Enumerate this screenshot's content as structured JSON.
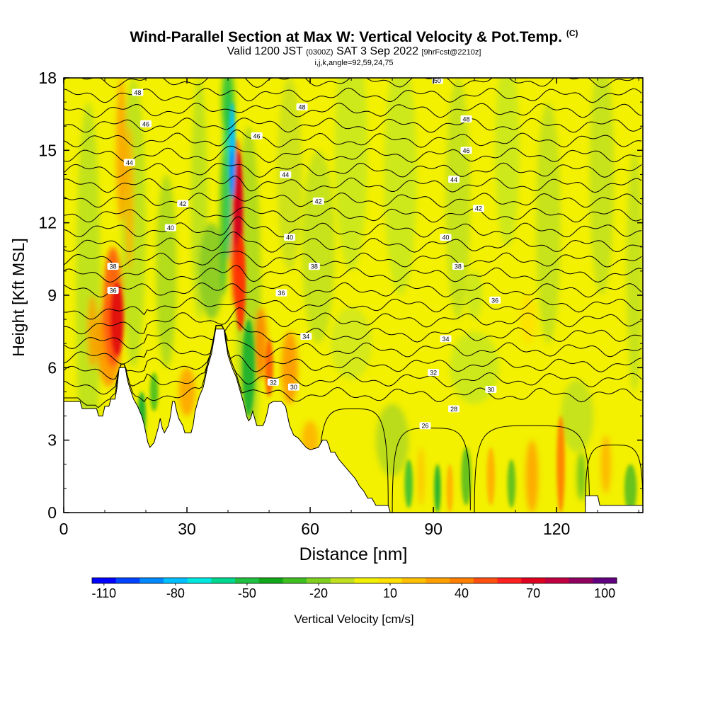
{
  "title": {
    "main": "Wind-Parallel Section at Max W: Vertical Velocity & Pot.Temp.",
    "main_suffix": "(C)",
    "valid_prefix": "Valid 1200 JST",
    "valid_utc": "(0300Z)",
    "valid_date": "SAT 3 Sep 2022",
    "forecast": "[9hrFcst@2210z]",
    "indices": "i,j,k,angle=92,59,24,75"
  },
  "chart_data": {
    "type": "heatmap",
    "xlabel": "Distance [nm]",
    "ylabel": "Height [Kft MSL]",
    "xlim": [
      0,
      141
    ],
    "ylim": [
      0,
      18
    ],
    "xticks": [
      0,
      30,
      60,
      90,
      120
    ],
    "yticks": [
      0,
      3,
      6,
      9,
      12,
      15,
      18
    ],
    "colorbar": {
      "label": "Vertical Velocity [cm/s]",
      "tick_labels": [
        "-110",
        "-80",
        "-50",
        "-20",
        "10",
        "40",
        "70",
        "100"
      ],
      "colors": [
        "#0000ff",
        "#0044ff",
        "#0088ff",
        "#00c0ff",
        "#00e8e0",
        "#00d890",
        "#20c040",
        "#10a818",
        "#40c020",
        "#80d020",
        "#c0e020",
        "#f0f000",
        "#ffe000",
        "#ffc000",
        "#ffa000",
        "#ff7f00",
        "#ff5010",
        "#ff2020",
        "#e00020",
        "#c00040",
        "#900060",
        "#600080"
      ]
    },
    "terrain_profile": [
      [
        0,
        4.6
      ],
      [
        4,
        4.6
      ],
      [
        4.5,
        4.3
      ],
      [
        8,
        4.3
      ],
      [
        8.5,
        4.0
      ],
      [
        9.5,
        4.0
      ],
      [
        10,
        4.4
      ],
      [
        11,
        4.4
      ],
      [
        11.5,
        4.7
      ],
      [
        12.5,
        4.7
      ],
      [
        13,
        5.2
      ],
      [
        13.5,
        6.0
      ],
      [
        15,
        6.0
      ],
      [
        15.5,
        5.5
      ],
      [
        16,
        5.2
      ],
      [
        17,
        4.7
      ],
      [
        18,
        4.4
      ],
      [
        19,
        4.0
      ],
      [
        19.5,
        3.7
      ],
      [
        20,
        3.3
      ],
      [
        20.5,
        2.9
      ],
      [
        21,
        2.7
      ],
      [
        22,
        2.9
      ],
      [
        22.5,
        3.2
      ],
      [
        23,
        3.5
      ],
      [
        23.5,
        3.9
      ],
      [
        24,
        3.5
      ],
      [
        24.5,
        3.3
      ],
      [
        25.5,
        3.6
      ],
      [
        26,
        4.0
      ],
      [
        26.5,
        4.6
      ],
      [
        27,
        4.6
      ],
      [
        27.5,
        4.2
      ],
      [
        28,
        3.9
      ],
      [
        29,
        3.6
      ],
      [
        29.5,
        3.3
      ],
      [
        31,
        3.3
      ],
      [
        31.5,
        3.6
      ],
      [
        32,
        4.2
      ],
      [
        33,
        4.8
      ],
      [
        34,
        5.2
      ],
      [
        35,
        6.0
      ],
      [
        36,
        6.6
      ],
      [
        37,
        7.6
      ],
      [
        39,
        7.6
      ],
      [
        39.5,
        7.0
      ],
      [
        40,
        6.5
      ],
      [
        41,
        6.0
      ],
      [
        42,
        5.6
      ],
      [
        43,
        5.0
      ],
      [
        44,
        4.4
      ],
      [
        44.5,
        4.0
      ],
      [
        45,
        3.8
      ],
      [
        45.5,
        3.9
      ],
      [
        46,
        4.2
      ],
      [
        46.5,
        3.9
      ],
      [
        47,
        3.6
      ],
      [
        48.5,
        3.6
      ],
      [
        49,
        3.8
      ],
      [
        49.5,
        4.1
      ],
      [
        50,
        4.5
      ],
      [
        51,
        4.6
      ],
      [
        53,
        4.6
      ],
      [
        54,
        4.4
      ],
      [
        54.5,
        4.0
      ],
      [
        55,
        3.6
      ],
      [
        56,
        3.2
      ],
      [
        57,
        3.1
      ],
      [
        58,
        2.9
      ],
      [
        59,
        2.7
      ],
      [
        60,
        2.6
      ],
      [
        62,
        2.7
      ],
      [
        63,
        3.0
      ],
      [
        64,
        3.0
      ],
      [
        64.5,
        2.8
      ],
      [
        65,
        2.5
      ],
      [
        66,
        2.5
      ],
      [
        67,
        2.2
      ],
      [
        68,
        2.0
      ],
      [
        69,
        1.8
      ],
      [
        70,
        1.6
      ],
      [
        71,
        1.4
      ],
      [
        72,
        1.1
      ],
      [
        73,
        0.9
      ],
      [
        74,
        0.6
      ],
      [
        75,
        0.6
      ],
      [
        76,
        0.3
      ],
      [
        79,
        0.3
      ],
      [
        79.5,
        0.0
      ],
      [
        127,
        0.0
      ],
      [
        127,
        0.7
      ],
      [
        130,
        0.7
      ],
      [
        130.5,
        0.3
      ],
      [
        141,
        0.3
      ]
    ],
    "isentrope_labels": [
      {
        "text": "50",
        "x": 91,
        "y": 17.9
      },
      {
        "text": "48",
        "x": 18,
        "y": 17.4
      },
      {
        "text": "48",
        "x": 58,
        "y": 16.8
      },
      {
        "text": "48",
        "x": 98,
        "y": 16.3
      },
      {
        "text": "46",
        "x": 20,
        "y": 16.1
      },
      {
        "text": "46",
        "x": 47,
        "y": 15.6
      },
      {
        "text": "46",
        "x": 98,
        "y": 15.0
      },
      {
        "text": "44",
        "x": 16,
        "y": 14.5
      },
      {
        "text": "44",
        "x": 54,
        "y": 14.0
      },
      {
        "text": "44",
        "x": 95,
        "y": 13.8
      },
      {
        "text": "42",
        "x": 29,
        "y": 12.8
      },
      {
        "text": "42",
        "x": 62,
        "y": 12.9
      },
      {
        "text": "42",
        "x": 101,
        "y": 12.6
      },
      {
        "text": "40",
        "x": 26,
        "y": 11.8
      },
      {
        "text": "40",
        "x": 55,
        "y": 11.4
      },
      {
        "text": "40",
        "x": 93,
        "y": 11.4
      },
      {
        "text": "38",
        "x": 12,
        "y": 10.2
      },
      {
        "text": "38",
        "x": 61,
        "y": 10.2
      },
      {
        "text": "38",
        "x": 96,
        "y": 10.2
      },
      {
        "text": "36",
        "x": 12,
        "y": 9.2
      },
      {
        "text": "36",
        "x": 53,
        "y": 9.1
      },
      {
        "text": "36",
        "x": 105,
        "y": 8.8
      },
      {
        "text": "34",
        "x": 59,
        "y": 7.3
      },
      {
        "text": "34",
        "x": 93,
        "y": 7.2
      },
      {
        "text": "32",
        "x": 51,
        "y": 5.4
      },
      {
        "text": "32",
        "x": 90,
        "y": 5.8
      },
      {
        "text": "30",
        "x": 56,
        "y": 5.2
      },
      {
        "text": "30",
        "x": 104,
        "y": 5.1
      },
      {
        "text": "28",
        "x": 95,
        "y": 4.3
      },
      {
        "text": "26",
        "x": 88,
        "y": 3.6
      }
    ]
  }
}
